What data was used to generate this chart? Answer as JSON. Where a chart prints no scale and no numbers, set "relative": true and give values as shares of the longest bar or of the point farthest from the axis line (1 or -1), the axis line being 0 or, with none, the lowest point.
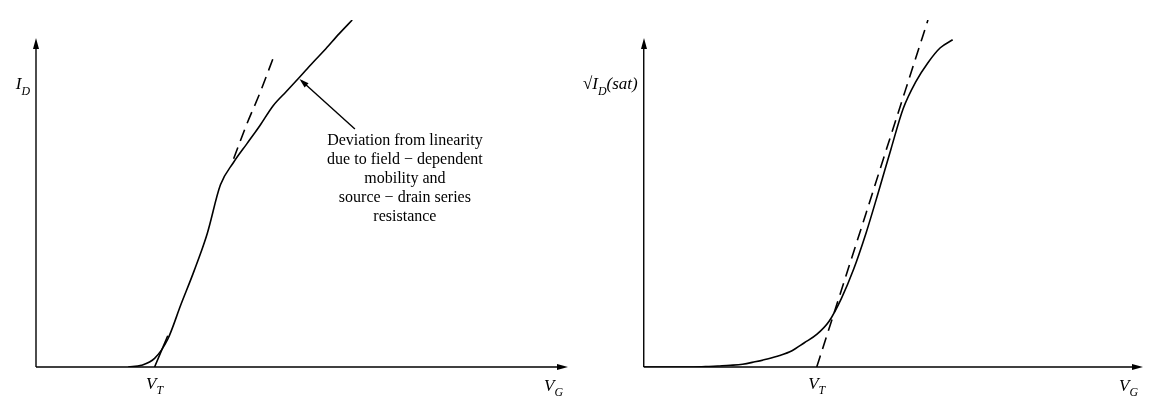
{
  "chart_data": [
    {
      "type": "line",
      "relative": true,
      "xlabel": "V$_{G}$",
      "ylabel": "I$_{D}$",
      "tick_labels": false,
      "categories": [
        null,
        null,
        null,
        null,
        null,
        null,
        null,
        null,
        null,
        null,
        null,
        null,
        null,
        null,
        null,
        null,
        null,
        null,
        null,
        null,
        null,
        null,
        null,
        null,
        null,
        null,
        null,
        null,
        null,
        null,
        null,
        null,
        null,
        null,
        null,
        null,
        null,
        null,
        null,
        null,
        null
      ],
      "series": [
        {
          "color": "#000000",
          "values": [
            null,
            null,
            null,
            null,
            null,
            null,
            null,
            0,
            0.005,
            0.025,
            0.08,
            0.18,
            0.277,
            0.385,
            0.525,
            0.59,
            0.643,
            0.696,
            0.753,
            0.794,
            0.835,
            0.877,
            0.917,
            0.96,
            1,
            null,
            null,
            null,
            null,
            null,
            null,
            null,
            null,
            null,
            null,
            null,
            null,
            null,
            null,
            null,
            null
          ]
        },
        {
          "type": "line",
          "color": "#000000",
          "line_style": "solid",
          "values": [
            null,
            null,
            null,
            null,
            null,
            null,
            null,
            null,
            null,
            0,
            0.09,
            null,
            null,
            null,
            null,
            null,
            null,
            null,
            null,
            null,
            null,
            null,
            null,
            null,
            null,
            null,
            null,
            null,
            null,
            null,
            null,
            null,
            null,
            null,
            null,
            null,
            null,
            null,
            null,
            null,
            null
          ]
        },
        {
          "type": "line",
          "color": "#000000",
          "line_style": "dashed",
          "values": [
            null,
            null,
            null,
            null,
            null,
            null,
            null,
            null,
            null,
            null,
            null,
            null,
            null,
            null,
            null,
            0.6,
            0.7,
            0.79,
            0.89,
            null,
            null,
            null,
            null,
            null,
            null,
            null,
            null,
            null,
            null,
            null,
            null,
            null,
            null,
            null,
            null,
            null,
            null,
            null,
            null,
            null,
            null
          ]
        }
      ],
      "annotations": [
        "V$_{T}$",
        "Deviation from linearity\ndue to field − dependent\nmobility and\nsource − drain series\nresistance"
      ]
    },
    {
      "type": "line",
      "relative": true,
      "xlabel": "V$_{G}$",
      "ylabel": "√I$_{D}$(sat)",
      "tick_labels": false,
      "annotations": [
        "V$_{T}$"
      ],
      "categories": [
        null,
        null,
        null,
        null,
        null,
        null,
        null,
        null,
        null,
        null,
        null,
        null,
        null,
        null,
        null,
        null,
        null,
        null,
        null,
        null,
        null,
        null,
        null,
        null,
        null,
        null,
        null,
        null,
        null,
        null,
        null,
        null,
        null,
        null,
        null,
        null,
        null,
        null,
        null,
        null,
        null
      ],
      "series": [
        {
          "color": "#000000",
          "values": [
            0,
            0,
            0,
            0,
            0,
            0.001,
            0.003,
            0.005,
            0.008,
            0.015,
            0.023,
            0.033,
            0.047,
            0.07,
            0.094,
            0.132,
            0.198,
            0.283,
            0.387,
            0.505,
            0.627,
            0.745,
            0.821,
            0.877,
            0.92,
            0.943,
            null,
            null,
            null,
            null,
            null,
            null,
            null,
            null,
            null,
            null,
            null,
            null,
            null,
            null,
            null
          ]
        },
        {
          "type": "line",
          "color": "#000000",
          "line_style": "dashed",
          "values": [
            null,
            null,
            null,
            null,
            null,
            null,
            null,
            null,
            null,
            null,
            null,
            null,
            null,
            null,
            0,
            0.111,
            0.222,
            0.333,
            0.444,
            0.556,
            0.667,
            0.778,
            0.889,
            1,
            null,
            null,
            null,
            null,
            null,
            null,
            null,
            null,
            null,
            null,
            null,
            null,
            null,
            null,
            null,
            null,
            null
          ]
        }
      ]
    }
  ]
}
